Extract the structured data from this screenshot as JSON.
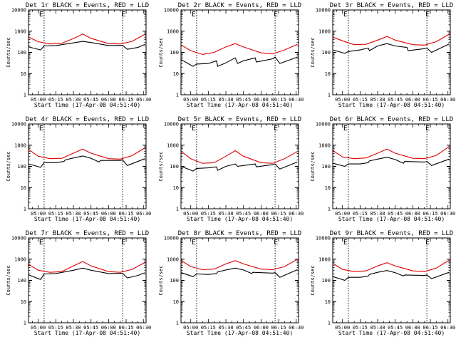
{
  "chart_data": [
    {
      "type": "line",
      "title": "Det 1r BLACK = Events, RED = LLD",
      "xlabel": "Start Time (17-Apr-08 04:51:40)",
      "ylabel": "Counts/sec",
      "yscale": "log",
      "ylim": [
        1,
        10000
      ],
      "x_ticks": [
        "05:00",
        "05:15",
        "05:30",
        "05:45",
        "06:00",
        "06:15",
        "06:30"
      ],
      "y_ticks": [
        "1",
        "10",
        "100",
        "1000",
        "10000"
      ],
      "markers": [
        "05:05",
        "06:12"
      ],
      "annotations": [
        "E",
        "E"
      ],
      "series": [
        {
          "color": "#000000",
          "x": [
            "04:52",
            "05:02",
            "05:05",
            "05:15",
            "05:30",
            "05:38",
            "05:45",
            "06:00",
            "06:12",
            "06:16",
            "06:25",
            "06:31"
          ],
          "values": [
            180,
            130,
            200,
            210,
            280,
            330,
            290,
            210,
            215,
            140,
            170,
            240
          ]
        },
        {
          "color": "#e00000",
          "x": [
            "04:52",
            "05:00",
            "05:10",
            "05:20",
            "05:30",
            "05:38",
            "05:45",
            "06:00",
            "06:10",
            "06:20",
            "06:31"
          ],
          "values": [
            520,
            320,
            250,
            270,
            450,
            730,
            460,
            260,
            250,
            330,
            720
          ]
        }
      ]
    },
    {
      "type": "line",
      "title": "Det 2r BLACK = Events, RED = LLD",
      "xlabel": "Start Time (17-Apr-08 04:51:40)",
      "ylabel": "Counts/sec",
      "yscale": "log",
      "ylim": [
        1,
        10000
      ],
      "x_ticks": [
        "05:00",
        "05:15",
        "05:30",
        "05:45",
        "06:00",
        "06:15",
        "06:30"
      ],
      "y_ticks": [
        "1",
        "10",
        "100",
        "1000",
        "10000"
      ],
      "markers": [
        "05:05",
        "06:12"
      ],
      "annotations": [
        "E",
        "E"
      ],
      "series": [
        {
          "color": "#000000",
          "x": [
            "04:52",
            "05:02",
            "05:05",
            "05:15",
            "05:22",
            "05:23",
            "05:30",
            "05:38",
            "05:40",
            "05:45",
            "05:55",
            "05:56",
            "06:10",
            "06:12",
            "06:16",
            "06:31"
          ],
          "values": [
            45,
            22,
            28,
            30,
            40,
            22,
            32,
            55,
            30,
            40,
            55,
            35,
            50,
            60,
            30,
            60
          ]
        },
        {
          "color": "#e00000",
          "x": [
            "04:52",
            "05:00",
            "05:10",
            "05:20",
            "05:30",
            "05:38",
            "05:45",
            "06:00",
            "06:10",
            "06:20",
            "06:31"
          ],
          "values": [
            220,
            120,
            80,
            100,
            180,
            260,
            180,
            95,
            85,
            130,
            240
          ]
        }
      ]
    },
    {
      "type": "line",
      "title": "Det 3r BLACK = Events, RED = LLD",
      "xlabel": "Start Time (17-Apr-08 04:51:40)",
      "ylabel": "Counts/sec",
      "yscale": "log",
      "ylim": [
        1,
        10000
      ],
      "x_ticks": [
        "05:00",
        "05:15",
        "05:30",
        "05:45",
        "06:00",
        "06:15",
        "06:30"
      ],
      "y_ticks": [
        "1",
        "10",
        "100",
        "1000",
        "10000"
      ],
      "markers": [
        "05:05",
        "06:12"
      ],
      "annotations": [
        "E",
        "E"
      ],
      "series": [
        {
          "color": "#000000",
          "x": [
            "04:52",
            "05:02",
            "05:05",
            "05:15",
            "05:22",
            "05:23",
            "05:30",
            "05:38",
            "05:45",
            "05:55",
            "05:56",
            "06:10",
            "06:12",
            "06:16",
            "06:31"
          ],
          "values": [
            130,
            90,
            110,
            130,
            160,
            120,
            200,
            260,
            200,
            170,
            120,
            150,
            160,
            100,
            250
          ]
        },
        {
          "color": "#e00000",
          "x": [
            "04:52",
            "05:00",
            "05:10",
            "05:20",
            "05:30",
            "05:38",
            "05:45",
            "06:00",
            "06:10",
            "06:20",
            "06:31"
          ],
          "values": [
            520,
            350,
            230,
            240,
            380,
            560,
            380,
            230,
            220,
            320,
            720
          ]
        }
      ]
    },
    {
      "type": "line",
      "title": "Det 4r BLACK = Events, RED = LLD",
      "xlabel": "Start Time (17-Apr-08 04:51:40)",
      "ylabel": "Counts/sec",
      "yscale": "log",
      "ylim": [
        1,
        10000
      ],
      "x_ticks": [
        "05:00",
        "05:15",
        "05:30",
        "05:45",
        "06:00",
        "06:15",
        "06:30"
      ],
      "y_ticks": [
        "1",
        "10",
        "100",
        "1000",
        "10000"
      ],
      "markers": [
        "05:05",
        "06:12"
      ],
      "annotations": [
        "E",
        "E"
      ],
      "series": [
        {
          "color": "#000000",
          "x": [
            "04:52",
            "05:02",
            "05:05",
            "05:15",
            "05:22",
            "05:23",
            "05:30",
            "05:38",
            "05:45",
            "05:52",
            "05:53",
            "06:10",
            "06:12",
            "06:16",
            "06:31"
          ],
          "values": [
            130,
            90,
            150,
            150,
            170,
            200,
            250,
            310,
            240,
            160,
            190,
            190,
            200,
            110,
            230
          ]
        },
        {
          "color": "#e00000",
          "x": [
            "04:52",
            "05:00",
            "05:10",
            "05:20",
            "05:30",
            "05:38",
            "05:45",
            "06:00",
            "06:10",
            "06:20",
            "06:31"
          ],
          "values": [
            620,
            300,
            230,
            240,
            420,
            650,
            420,
            230,
            220,
            320,
            750
          ]
        }
      ]
    },
    {
      "type": "line",
      "title": "Det 5r BLACK = Events, RED = LLD",
      "xlabel": "Start Time (17-Apr-08 04:51:40)",
      "ylabel": "Counts/sec",
      "yscale": "log",
      "ylim": [
        1,
        10000
      ],
      "x_ticks": [
        "05:00",
        "05:15",
        "05:30",
        "05:45",
        "06:00",
        "06:15",
        "06:30"
      ],
      "y_ticks": [
        "1",
        "10",
        "100",
        "1000",
        "10000"
      ],
      "markers": [
        "05:05",
        "06:12"
      ],
      "annotations": [
        "E",
        "E"
      ],
      "series": [
        {
          "color": "#000000",
          "x": [
            "04:52",
            "05:02",
            "05:05",
            "05:15",
            "05:22",
            "05:23",
            "05:30",
            "05:38",
            "05:40",
            "05:45",
            "05:55",
            "05:56",
            "06:10",
            "06:12",
            "06:16",
            "06:31"
          ],
          "values": [
            100,
            60,
            80,
            85,
            95,
            65,
            100,
            130,
            100,
            110,
            130,
            95,
            120,
            130,
            75,
            160
          ]
        },
        {
          "color": "#e00000",
          "x": [
            "04:52",
            "05:00",
            "05:10",
            "05:20",
            "05:30",
            "05:38",
            "05:45",
            "06:00",
            "06:10",
            "06:20",
            "06:31"
          ],
          "values": [
            500,
            230,
            140,
            150,
            300,
            550,
            300,
            150,
            140,
            230,
            500
          ]
        }
      ]
    },
    {
      "type": "line",
      "title": "Det 6r BLACK = Events, RED = LLD",
      "xlabel": "Start Time (17-Apr-08 04:51:40)",
      "ylabel": "Counts/sec",
      "yscale": "log",
      "ylim": [
        1,
        10000
      ],
      "x_ticks": [
        "05:00",
        "05:15",
        "05:30",
        "05:45",
        "06:00",
        "06:15",
        "06:30"
      ],
      "y_ticks": [
        "1",
        "10",
        "100",
        "1000",
        "10000"
      ],
      "markers": [
        "05:05",
        "06:12"
      ],
      "annotations": [
        "E",
        "E"
      ],
      "series": [
        {
          "color": "#000000",
          "x": [
            "04:52",
            "05:02",
            "05:05",
            "05:15",
            "05:22",
            "05:23",
            "05:30",
            "05:38",
            "05:45",
            "05:52",
            "05:53",
            "06:10",
            "06:12",
            "06:16",
            "06:31"
          ],
          "values": [
            140,
            100,
            130,
            130,
            150,
            180,
            220,
            270,
            210,
            140,
            170,
            160,
            170,
            110,
            220
          ]
        },
        {
          "color": "#e00000",
          "x": [
            "04:52",
            "05:00",
            "05:10",
            "05:20",
            "05:30",
            "05:38",
            "05:45",
            "06:00",
            "06:10",
            "06:20",
            "06:31"
          ],
          "values": [
            550,
            280,
            230,
            250,
            420,
            650,
            420,
            240,
            230,
            330,
            850
          ]
        }
      ]
    },
    {
      "type": "line",
      "title": "Det 7r BLACK = Events, RED = LLD",
      "xlabel": "Start Time (17-Apr-08 04:51:40)",
      "ylabel": "Counts/sec",
      "yscale": "log",
      "ylim": [
        1,
        10000
      ],
      "x_ticks": [
        "05:00",
        "05:15",
        "05:30",
        "05:45",
        "06:00",
        "06:15",
        "06:30"
      ],
      "y_ticks": [
        "1",
        "10",
        "100",
        "1000",
        "10000"
      ],
      "markers": [
        "05:05",
        "06:12"
      ],
      "annotations": [
        "E",
        "E"
      ],
      "series": [
        {
          "color": "#000000",
          "x": [
            "04:52",
            "05:02",
            "05:05",
            "05:15",
            "05:30",
            "05:38",
            "05:45",
            "06:00",
            "06:12",
            "06:16",
            "06:25",
            "06:31"
          ],
          "values": [
            180,
            110,
            200,
            210,
            300,
            380,
            300,
            210,
            215,
            130,
            170,
            230
          ]
        },
        {
          "color": "#e00000",
          "x": [
            "04:52",
            "05:00",
            "05:10",
            "05:20",
            "05:30",
            "05:38",
            "05:45",
            "06:00",
            "06:10",
            "06:20",
            "06:31"
          ],
          "values": [
            560,
            300,
            240,
            260,
            480,
            780,
            480,
            260,
            240,
            330,
            700
          ]
        }
      ]
    },
    {
      "type": "line",
      "title": "Det 8r BLACK = Events, RED = LLD",
      "xlabel": "Start Time (17-Apr-08 04:51:40)",
      "ylabel": "Counts/sec",
      "yscale": "log",
      "ylim": [
        1,
        10000
      ],
      "x_ticks": [
        "05:00",
        "05:15",
        "05:30",
        "05:45",
        "06:00",
        "06:15",
        "06:30"
      ],
      "y_ticks": [
        "1",
        "10",
        "100",
        "1000",
        "10000"
      ],
      "markers": [
        "05:05",
        "06:12"
      ],
      "annotations": [
        "E",
        "E"
      ],
      "series": [
        {
          "color": "#000000",
          "x": [
            "04:52",
            "05:02",
            "05:05",
            "05:15",
            "05:22",
            "05:23",
            "05:30",
            "05:38",
            "05:45",
            "05:52",
            "05:53",
            "06:10",
            "06:12",
            "06:16",
            "06:31"
          ],
          "values": [
            230,
            150,
            200,
            190,
            210,
            250,
            310,
            380,
            310,
            210,
            240,
            220,
            230,
            140,
            320
          ]
        },
        {
          "color": "#e00000",
          "x": [
            "04:52",
            "05:00",
            "05:10",
            "05:20",
            "05:30",
            "05:38",
            "05:45",
            "06:00",
            "06:10",
            "06:20",
            "06:31"
          ],
          "values": [
            850,
            450,
            320,
            340,
            600,
            850,
            600,
            340,
            320,
            450,
            1000
          ]
        }
      ]
    },
    {
      "type": "line",
      "title": "Det 9r BLACK = Events, RED = LLD",
      "xlabel": "Start Time (17-Apr-08 04:51:40)",
      "ylabel": "Counts/sec",
      "yscale": "log",
      "ylim": [
        1,
        10000
      ],
      "x_ticks": [
        "05:00",
        "05:15",
        "05:30",
        "05:45",
        "06:00",
        "06:15",
        "06:30"
      ],
      "y_ticks": [
        "1",
        "10",
        "100",
        "1000",
        "10000"
      ],
      "markers": [
        "05:05",
        "06:12"
      ],
      "annotations": [
        "E",
        "E"
      ],
      "series": [
        {
          "color": "#000000",
          "x": [
            "04:52",
            "05:02",
            "05:05",
            "05:15",
            "05:22",
            "05:23",
            "05:30",
            "05:38",
            "05:45",
            "05:52",
            "05:53",
            "06:10",
            "06:12",
            "06:16",
            "06:31"
          ],
          "values": [
            150,
            100,
            140,
            140,
            160,
            190,
            240,
            290,
            230,
            160,
            180,
            170,
            180,
            120,
            240
          ]
        },
        {
          "color": "#e00000",
          "x": [
            "04:52",
            "05:00",
            "05:10",
            "05:20",
            "05:30",
            "05:38",
            "05:45",
            "06:00",
            "06:10",
            "06:20",
            "06:31"
          ],
          "values": [
            620,
            330,
            260,
            280,
            480,
            680,
            480,
            280,
            260,
            380,
            900
          ]
        }
      ]
    }
  ]
}
